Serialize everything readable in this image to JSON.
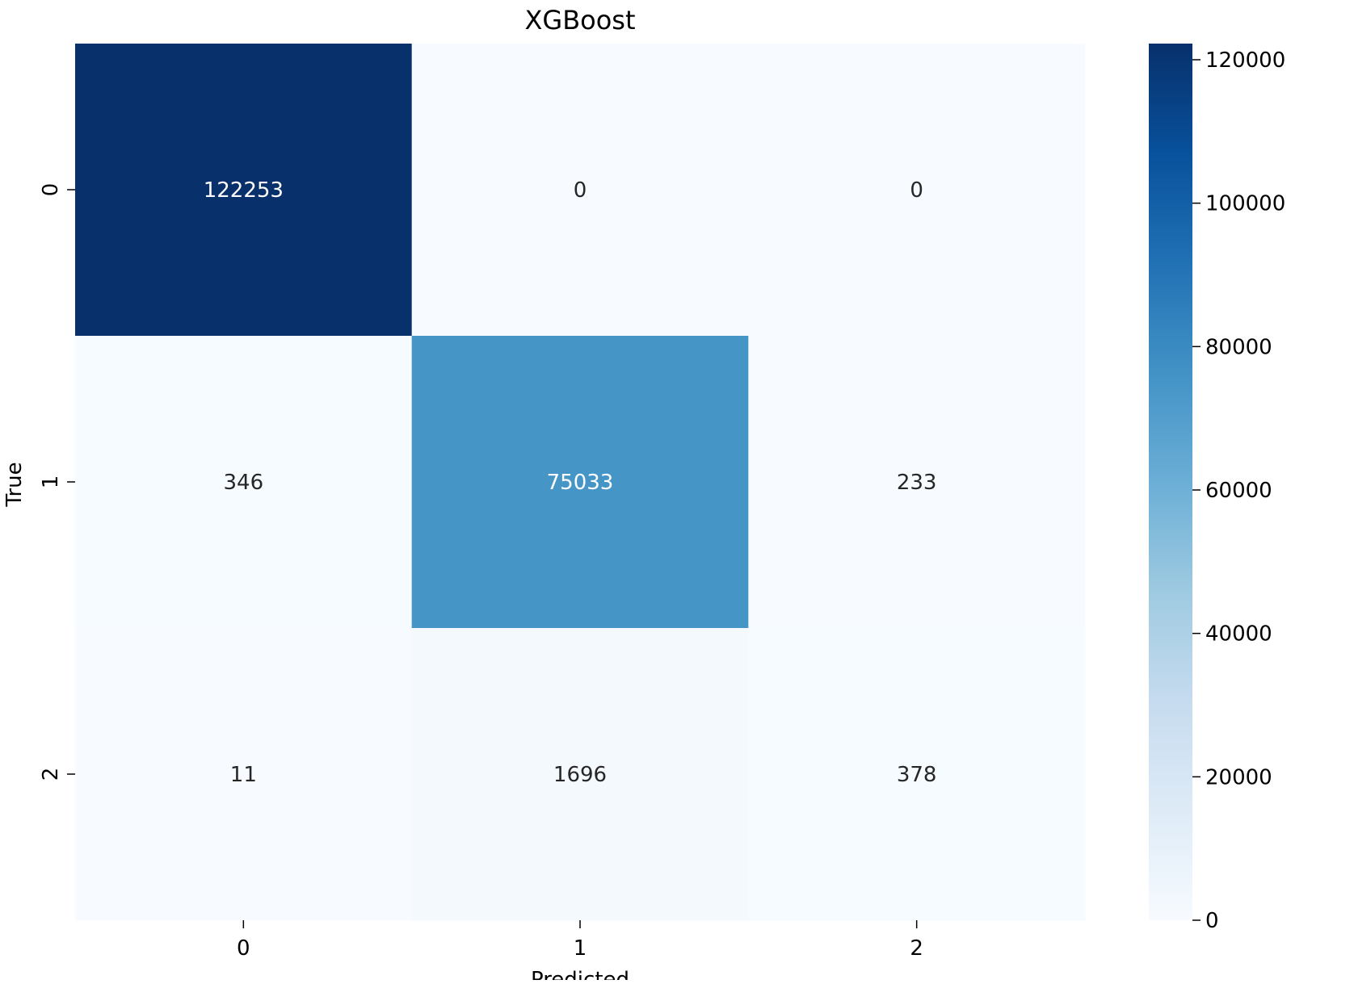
{
  "chart_data": {
    "type": "heatmap",
    "title": "XGBoost",
    "xlabel": "Predicted",
    "ylabel": "True",
    "x_categories": [
      "0",
      "1",
      "2"
    ],
    "y_categories": [
      "0",
      "1",
      "2"
    ],
    "values": [
      [
        122253,
        0,
        0
      ],
      [
        346,
        75033,
        233
      ],
      [
        11,
        1696,
        378
      ]
    ],
    "colormap": "Blues",
    "color_range": [
      0,
      122253
    ],
    "colorbar": {
      "ticks": [
        0,
        20000,
        40000,
        60000,
        80000,
        100000,
        120000
      ],
      "tick_labels": [
        "0",
        "20000",
        "40000",
        "60000",
        "80000",
        "100000",
        "120000"
      ]
    },
    "annotations": true,
    "legend": "colorbar-right"
  }
}
